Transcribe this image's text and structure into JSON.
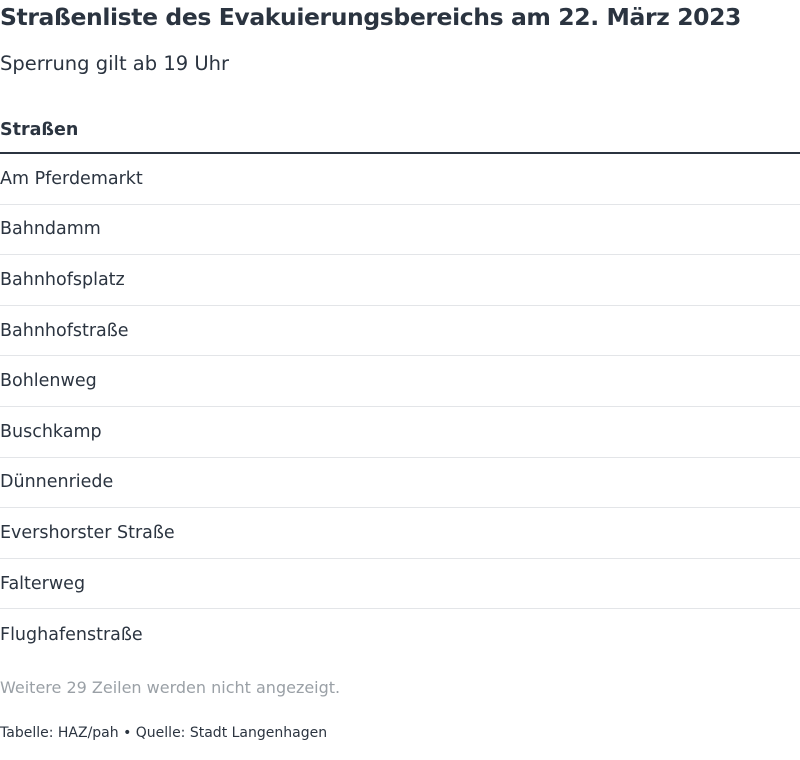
{
  "header": {
    "title": "Straßenliste des Evakuierungsbereichs am 22. März 2023",
    "subtitle": "Sperrung gilt ab 19 Uhr"
  },
  "table": {
    "columns": [
      "Straßen"
    ],
    "rows": [
      "Am Pferdemarkt",
      "Bahndamm",
      "Bahnhofsplatz",
      "Bahnhofstraße",
      "Bohlenweg",
      "Buschkamp",
      "Dünnenriede",
      "Evershorster Straße",
      "Falterweg",
      "Flughafenstraße"
    ],
    "more_rows_note": "Weitere 29 Zeilen werden nicht angezeigt."
  },
  "footer": {
    "credit": "Tabelle: HAZ/pah • Quelle: Stadt Langenhagen"
  },
  "colors": {
    "text": "#2b3440",
    "muted": "#9aa0a6",
    "divider": "#e3e5e8"
  }
}
